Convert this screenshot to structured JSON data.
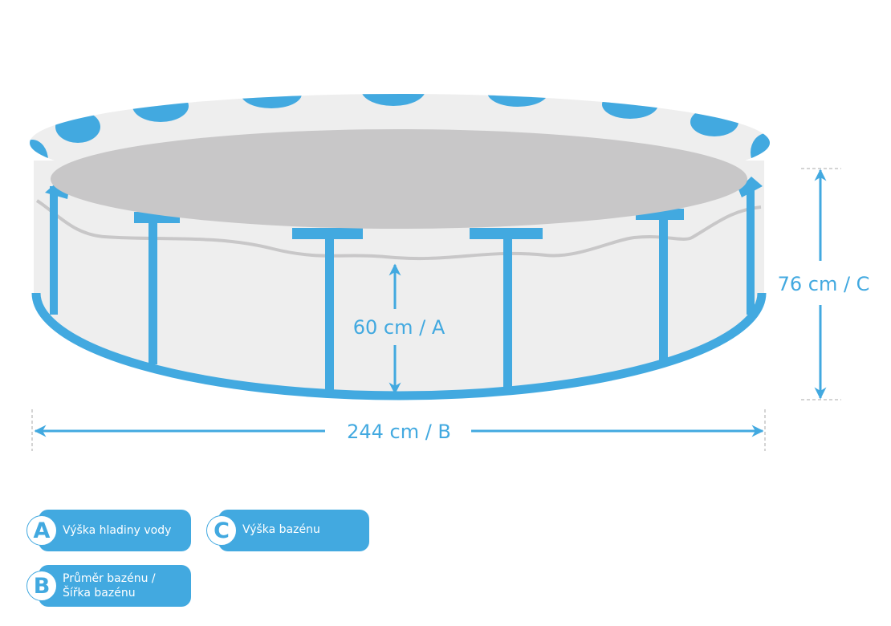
{
  "dimensions": {
    "a_label": "60 cm / A",
    "b_label": "244 cm / B",
    "c_label": "76 cm / C"
  },
  "legend": [
    {
      "letter": "A",
      "text": "Výška hladiny vody"
    },
    {
      "letter": "B",
      "text_line1": "Průměr bazénu /",
      "text_line2": "Šířka bazénu"
    },
    {
      "letter": "C",
      "text": "Výška bazénu"
    }
  ],
  "colors": {
    "accent": "#42a9e0",
    "pool_wall": "#eeeeee",
    "water": "#c8c7c8"
  }
}
